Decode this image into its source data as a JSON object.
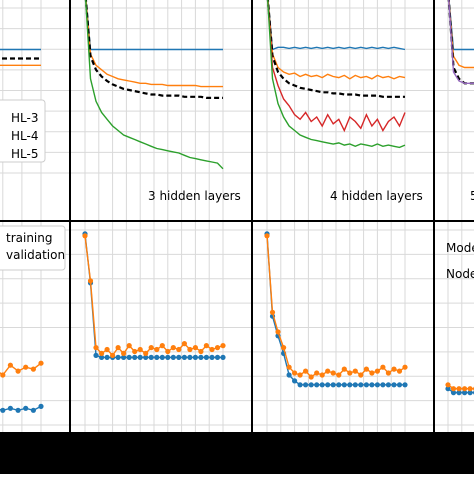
{
  "chart_data": [
    {
      "type": "line",
      "title": "",
      "panel_label": "",
      "ylim": [
        0.5,
        1.3
      ],
      "x": [
        0,
        4,
        8,
        12,
        16,
        20,
        24,
        28,
        32,
        36,
        40,
        44,
        48,
        52,
        56,
        60,
        64,
        68,
        72,
        76,
        80,
        84,
        88,
        92,
        96,
        100
      ],
      "legend": {
        "position": "center-right",
        "entries": [
          "HL-3",
          "HL-4",
          "HL-5"
        ]
      },
      "series": [
        {
          "name": "",
          "color": "#1f77b4",
          "style": "solid",
          "values": [
            1.08,
            1.08,
            1.08,
            1.08,
            1.08,
            1.08,
            1.08,
            1.08,
            1.08,
            1.08,
            1.08,
            1.08,
            1.08,
            1.08,
            1.08,
            1.08,
            1.08,
            1.08,
            1.08,
            1.08,
            1.08,
            1.08,
            1.08,
            1.08,
            1.08,
            1.08
          ]
        },
        {
          "name": "",
          "color": "#000000",
          "style": "dashed",
          "values": [
            1.04,
            1.04,
            1.04,
            1.04,
            1.04,
            1.04,
            1.04,
            1.04,
            1.04,
            1.04,
            1.04,
            1.04,
            1.04,
            1.04,
            1.04,
            1.04,
            1.04,
            1.04,
            1.04,
            1.04,
            1.04,
            1.04,
            1.04,
            1.04,
            1.04,
            1.04
          ]
        },
        {
          "name": "",
          "color": "#ff7f0e",
          "style": "solid",
          "values": [
            1.01,
            1.01,
            1.01,
            1.01,
            1.01,
            1.01,
            1.01,
            1.01,
            1.01,
            1.01,
            1.01,
            1.01,
            1.01,
            1.01,
            1.01,
            1.01,
            1.01,
            1.01,
            1.01,
            1.01,
            1.01,
            1.01,
            1.01,
            1.01,
            1.01,
            1.01
          ]
        }
      ]
    },
    {
      "type": "line",
      "title": "3 hidden layers",
      "ylim": [
        0.5,
        1.3
      ],
      "x": [
        0,
        4,
        8,
        12,
        16,
        20,
        24,
        28,
        32,
        36,
        40,
        44,
        48,
        52,
        56,
        60,
        64,
        68,
        72,
        76,
        80,
        84,
        88,
        92,
        96,
        100
      ],
      "series": [
        {
          "name": "",
          "color": "#1f77b4",
          "style": "solid",
          "values": [
            1.35,
            1.08,
            1.08,
            1.08,
            1.08,
            1.08,
            1.08,
            1.08,
            1.08,
            1.08,
            1.08,
            1.08,
            1.08,
            1.08,
            1.08,
            1.08,
            1.08,
            1.08,
            1.08,
            1.08,
            1.08,
            1.08,
            1.08,
            1.08,
            1.08,
            1.08
          ]
        },
        {
          "name": "",
          "color": "#ff7f0e",
          "style": "solid",
          "values": [
            1.35,
            1.06,
            1.01,
            0.99,
            0.97,
            0.96,
            0.95,
            0.945,
            0.94,
            0.935,
            0.93,
            0.93,
            0.925,
            0.925,
            0.925,
            0.92,
            0.92,
            0.92,
            0.92,
            0.92,
            0.92,
            0.915,
            0.915,
            0.915,
            0.915,
            0.915
          ]
        },
        {
          "name": "",
          "color": "#000000",
          "style": "dashed",
          "values": [
            1.35,
            1.05,
            0.99,
            0.96,
            0.94,
            0.925,
            0.915,
            0.905,
            0.9,
            0.895,
            0.89,
            0.885,
            0.88,
            0.88,
            0.875,
            0.875,
            0.875,
            0.875,
            0.87,
            0.87,
            0.87,
            0.87,
            0.865,
            0.865,
            0.865,
            0.865
          ]
        },
        {
          "name": "",
          "color": "#2ca02c",
          "style": "solid",
          "values": [
            1.35,
            0.95,
            0.85,
            0.8,
            0.77,
            0.74,
            0.72,
            0.7,
            0.69,
            0.68,
            0.67,
            0.66,
            0.65,
            0.64,
            0.635,
            0.63,
            0.625,
            0.62,
            0.61,
            0.6,
            0.595,
            0.59,
            0.585,
            0.58,
            0.575,
            0.55
          ]
        }
      ]
    },
    {
      "type": "line",
      "title": "4 hidden layers",
      "ylim": [
        0.5,
        1.3
      ],
      "x": [
        0,
        4,
        8,
        12,
        16,
        20,
        24,
        28,
        32,
        36,
        40,
        44,
        48,
        52,
        56,
        60,
        64,
        68,
        72,
        76,
        80,
        84,
        88,
        92,
        96,
        100
      ],
      "series": [
        {
          "name": "",
          "color": "#1f77b4",
          "style": "solid",
          "values": [
            1.35,
            1.08,
            1.09,
            1.09,
            1.085,
            1.09,
            1.085,
            1.09,
            1.085,
            1.09,
            1.085,
            1.09,
            1.085,
            1.09,
            1.085,
            1.09,
            1.085,
            1.09,
            1.085,
            1.09,
            1.085,
            1.09,
            1.085,
            1.09,
            1.085,
            1.08
          ]
        },
        {
          "name": "",
          "color": "#ff7f0e",
          "style": "solid",
          "values": [
            1.35,
            1.06,
            1.0,
            0.98,
            0.97,
            0.975,
            0.96,
            0.97,
            0.96,
            0.965,
            0.955,
            0.97,
            0.96,
            0.955,
            0.965,
            0.95,
            0.965,
            0.955,
            0.96,
            0.95,
            0.965,
            0.955,
            0.96,
            0.95,
            0.96,
            0.955
          ]
        },
        {
          "name": "",
          "color": "#000000",
          "style": "dashed",
          "values": [
            1.35,
            1.05,
            0.98,
            0.95,
            0.93,
            0.92,
            0.91,
            0.905,
            0.9,
            0.895,
            0.89,
            0.89,
            0.885,
            0.885,
            0.88,
            0.88,
            0.88,
            0.875,
            0.875,
            0.875,
            0.875,
            0.87,
            0.87,
            0.87,
            0.87,
            0.87
          ]
        },
        {
          "name": "",
          "color": "#d62728",
          "style": "solid",
          "values": [
            1.35,
            1.0,
            0.92,
            0.86,
            0.83,
            0.79,
            0.77,
            0.8,
            0.76,
            0.78,
            0.74,
            0.79,
            0.75,
            0.77,
            0.72,
            0.78,
            0.76,
            0.73,
            0.79,
            0.74,
            0.77,
            0.72,
            0.76,
            0.78,
            0.74,
            0.8
          ]
        },
        {
          "name": "",
          "color": "#2ca02c",
          "style": "solid",
          "values": [
            1.35,
            0.95,
            0.84,
            0.78,
            0.74,
            0.72,
            0.7,
            0.69,
            0.68,
            0.675,
            0.67,
            0.665,
            0.66,
            0.665,
            0.655,
            0.66,
            0.65,
            0.66,
            0.655,
            0.65,
            0.66,
            0.65,
            0.655,
            0.65,
            0.645,
            0.655
          ]
        }
      ]
    },
    {
      "type": "line",
      "title": "5",
      "ylim": [
        0.5,
        1.3
      ],
      "x": [
        0,
        4,
        8,
        12,
        16,
        20,
        24,
        28,
        32,
        36,
        40,
        44,
        48,
        52,
        56,
        60,
        64,
        68,
        72,
        76,
        80,
        84,
        88,
        92,
        96,
        100
      ],
      "series": [
        {
          "name": "",
          "color": "#1f77b4",
          "style": "solid",
          "values": [
            1.35,
            1.08,
            1.08,
            1.08,
            1.08,
            1.08,
            1.08,
            1.08,
            1.08,
            1.08,
            1.08,
            1.08,
            1.08,
            1.08,
            1.08,
            1.08,
            1.08,
            1.08,
            1.08,
            1.08,
            1.08,
            1.08,
            1.08,
            1.08,
            1.08,
            1.08
          ]
        },
        {
          "name": "",
          "color": "#ff7f0e",
          "style": "solid",
          "values": [
            1.35,
            1.05,
            1.01,
            1.0,
            1.0,
            1.0,
            1.0,
            1.0,
            1.0,
            1.0,
            1.0,
            1.0,
            1.0,
            1.0,
            1.0,
            1.0,
            1.0,
            1.0,
            1.0,
            1.0,
            1.0,
            1.0,
            1.0,
            1.0,
            1.0,
            1.0
          ]
        },
        {
          "name": "",
          "color": "#000000",
          "style": "dashed",
          "values": [
            1.35,
            1.0,
            0.95,
            0.93,
            0.93,
            0.93,
            0.93,
            0.93,
            0.93,
            0.93,
            0.93,
            0.93,
            0.93,
            0.93,
            0.93,
            0.93,
            0.93,
            0.93,
            0.93,
            0.93,
            0.93,
            0.93,
            0.93,
            0.93,
            0.93,
            0.93
          ]
        },
        {
          "name": "",
          "color": "#9467bd",
          "style": "solid",
          "values": [
            1.35,
            0.98,
            0.94,
            0.93,
            0.93,
            0.93,
            0.93,
            0.93,
            0.93,
            0.93,
            0.93,
            0.93,
            0.93,
            0.93,
            0.93,
            0.93,
            0.93,
            0.93,
            0.93,
            0.93,
            0.93,
            0.93,
            0.93,
            0.93,
            0.93,
            0.93
          ]
        }
      ]
    },
    {
      "type": "line",
      "title": "",
      "ylim": [
        0.0,
        1.0
      ],
      "x": [
        0,
        4,
        8,
        12,
        16,
        20,
        24,
        28,
        32,
        36,
        40,
        44,
        48,
        52,
        56,
        60,
        64,
        68,
        72,
        76,
        80,
        84,
        88,
        92,
        96,
        100
      ],
      "legend": {
        "position": "top-left",
        "entries": [
          "training",
          "validation"
        ]
      },
      "series": [
        {
          "name": "training",
          "color": "#1f77b4",
          "marker": "o",
          "values": [
            0.08,
            0.08,
            0.07,
            0.08,
            0.07,
            0.08,
            0.07,
            0.08,
            0.07,
            0.08,
            0.07,
            0.08,
            0.07,
            0.08,
            0.07,
            0.08,
            0.07,
            0.08,
            0.07,
            0.08,
            0.07,
            0.08,
            0.07,
            0.08,
            0.07,
            0.09
          ]
        },
        {
          "name": "validation",
          "color": "#ff7f0e",
          "marker": "o",
          "values": [
            0.22,
            0.24,
            0.21,
            0.25,
            0.22,
            0.26,
            0.23,
            0.25,
            0.22,
            0.27,
            0.24,
            0.26,
            0.23,
            0.28,
            0.24,
            0.27,
            0.25,
            0.29,
            0.26,
            0.28,
            0.25,
            0.3,
            0.27,
            0.29,
            0.28,
            0.31
          ]
        }
      ]
    },
    {
      "type": "line",
      "title": "",
      "ylim": [
        0.0,
        1.0
      ],
      "x": [
        0,
        4,
        8,
        12,
        16,
        20,
        24,
        28,
        32,
        36,
        40,
        44,
        48,
        52,
        56,
        60,
        64,
        68,
        72,
        76,
        80,
        84,
        88,
        92,
        96,
        100
      ],
      "series": [
        {
          "name": "training",
          "color": "#1f77b4",
          "marker": "o",
          "values": [
            0.97,
            0.72,
            0.35,
            0.34,
            0.34,
            0.34,
            0.34,
            0.34,
            0.34,
            0.34,
            0.34,
            0.34,
            0.34,
            0.34,
            0.34,
            0.34,
            0.34,
            0.34,
            0.34,
            0.34,
            0.34,
            0.34,
            0.34,
            0.34,
            0.34,
            0.34
          ]
        },
        {
          "name": "validation",
          "color": "#ff7f0e",
          "marker": "o",
          "values": [
            0.96,
            0.73,
            0.39,
            0.36,
            0.38,
            0.35,
            0.39,
            0.36,
            0.4,
            0.37,
            0.38,
            0.36,
            0.39,
            0.38,
            0.4,
            0.37,
            0.39,
            0.38,
            0.41,
            0.38,
            0.39,
            0.37,
            0.4,
            0.38,
            0.39,
            0.4
          ]
        }
      ]
    },
    {
      "type": "line",
      "title": "",
      "ylim": [
        0.0,
        1.0
      ],
      "x": [
        0,
        4,
        8,
        12,
        16,
        20,
        24,
        28,
        32,
        36,
        40,
        44,
        48,
        52,
        56,
        60,
        64,
        68,
        72,
        76,
        80,
        84,
        88,
        92,
        96,
        100
      ],
      "series": [
        {
          "name": "training",
          "color": "#1f77b4",
          "marker": "o",
          "values": [
            0.97,
            0.55,
            0.45,
            0.36,
            0.25,
            0.22,
            0.2,
            0.2,
            0.2,
            0.2,
            0.2,
            0.2,
            0.2,
            0.2,
            0.2,
            0.2,
            0.2,
            0.2,
            0.2,
            0.2,
            0.2,
            0.2,
            0.2,
            0.2,
            0.2,
            0.2
          ]
        },
        {
          "name": "validation",
          "color": "#ff7f0e",
          "marker": "o",
          "values": [
            0.96,
            0.57,
            0.47,
            0.39,
            0.29,
            0.26,
            0.25,
            0.27,
            0.24,
            0.26,
            0.25,
            0.27,
            0.26,
            0.25,
            0.28,
            0.26,
            0.27,
            0.25,
            0.28,
            0.26,
            0.27,
            0.29,
            0.26,
            0.28,
            0.27,
            0.29
          ]
        }
      ]
    },
    {
      "type": "line",
      "title": "",
      "ylim": [
        0.0,
        1.0
      ],
      "annotations": [
        "Mode",
        "Nodes"
      ],
      "x": [
        0,
        4,
        8,
        12,
        16,
        20,
        24,
        28,
        32,
        36,
        40,
        44,
        48,
        52,
        56,
        60,
        64,
        68,
        72,
        76,
        80,
        84,
        88,
        92,
        96,
        100
      ],
      "series": [
        {
          "name": "training",
          "color": "#1f77b4",
          "marker": "o",
          "values": [
            0.18,
            0.16,
            0.16,
            0.16,
            0.16,
            0.16,
            0.16,
            0.16,
            0.16,
            0.16,
            0.16,
            0.16,
            0.16,
            0.16,
            0.16,
            0.16,
            0.16,
            0.16,
            0.16,
            0.16,
            0.16,
            0.16,
            0.16,
            0.16,
            0.16,
            0.16
          ]
        },
        {
          "name": "validation",
          "color": "#ff7f0e",
          "marker": "o",
          "values": [
            0.2,
            0.18,
            0.18,
            0.18,
            0.18,
            0.18,
            0.18,
            0.18,
            0.18,
            0.18,
            0.18,
            0.18,
            0.18,
            0.18,
            0.18,
            0.18,
            0.18,
            0.18,
            0.18,
            0.18,
            0.18,
            0.18,
            0.18,
            0.18,
            0.18,
            0.18
          ]
        }
      ]
    }
  ]
}
